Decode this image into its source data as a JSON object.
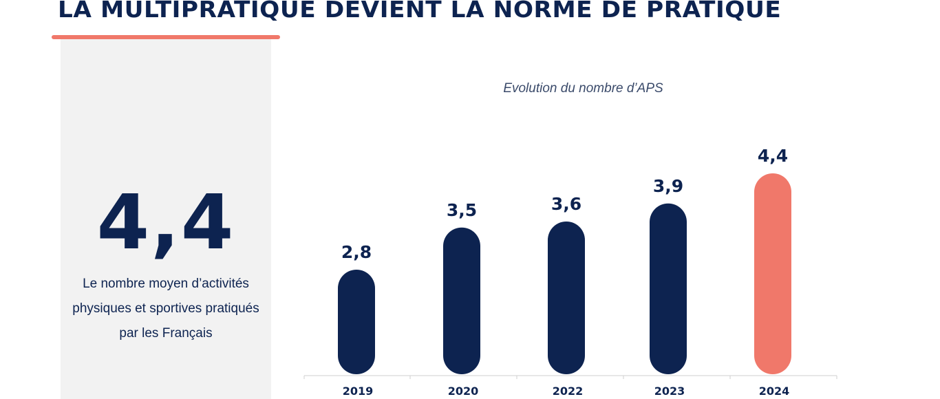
{
  "header": {
    "title": "LA MULTIPRATIQUE DEVIENT LA NORME DE PRATIQUE"
  },
  "panel": {
    "big_number": "4,4",
    "description": "Le nombre moyen d’activités physiques et sportives pratiqués par les Français"
  },
  "colors": {
    "navy": "#0d2350",
    "accent": "#f0786a",
    "panel_bg": "#f2f2f2"
  },
  "chart_data": {
    "type": "bar",
    "title": "Evolution du nombre d’APS",
    "categories": [
      "2019",
      "2020",
      "2022",
      "2023",
      "2024"
    ],
    "values": [
      2.8,
      3.5,
      3.6,
      3.9,
      4.4
    ],
    "value_labels": [
      "2,8",
      "3,5",
      "3,6",
      "3,9",
      "4,4"
    ],
    "highlight_index": 4,
    "grid": false,
    "legend": false
  }
}
